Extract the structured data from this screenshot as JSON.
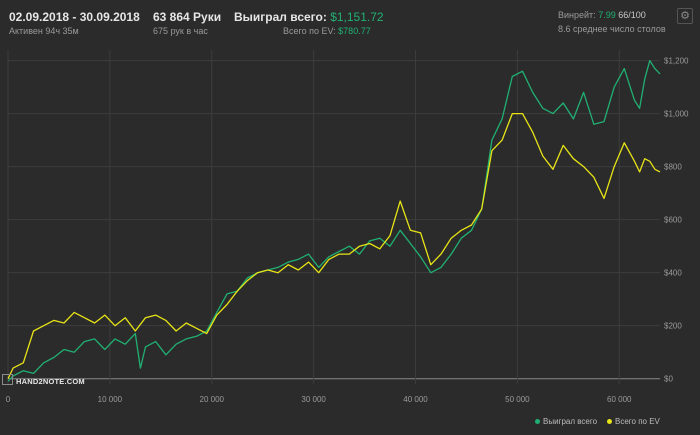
{
  "header": {
    "dates": "02.09.2018 - 30.09.2018",
    "active": "Активен 94ч 35м",
    "hands": "63 864 Руки",
    "hands_rate": "675 рук в час",
    "won_label": "Выиграл всего:",
    "won_value": "$1,151.72",
    "ev_label": "Всего по EV:",
    "ev_value": "$780.77",
    "winrate_label": "Винрейт:",
    "winrate_value": "7.99",
    "winrate_wins": "66/100",
    "avg_tables": "8.6 среднее число столов"
  },
  "colors": {
    "won": "#21b073",
    "ev": "#e8e416",
    "background": "#2b2b2b",
    "grid": "#3c3c3c"
  },
  "icons": {
    "settings": "gear-icon",
    "logo": "hand2note-logo"
  },
  "logo_text": "HAND2NOTE.COM",
  "legend": {
    "won": "Выиграл всего",
    "ev": "Всего по EV"
  },
  "chart_data": {
    "type": "line",
    "xlim": [
      0,
      64000
    ],
    "ylim": [
      -20,
      1240
    ],
    "x_ticks": [
      {
        "v": 0,
        "label": "0"
      },
      {
        "v": 10000,
        "label": "10 000"
      },
      {
        "v": 20000,
        "label": "20 000"
      },
      {
        "v": 30000,
        "label": "30 000"
      },
      {
        "v": 40000,
        "label": "40 000"
      },
      {
        "v": 50000,
        "label": "50 000"
      },
      {
        "v": 60000,
        "label": "60 000"
      }
    ],
    "y_ticks": [
      {
        "v": 0,
        "label": "$0"
      },
      {
        "v": 200,
        "label": "$200"
      },
      {
        "v": 400,
        "label": "$400"
      },
      {
        "v": 600,
        "label": "$600"
      },
      {
        "v": 800,
        "label": "$800"
      },
      {
        "v": 1000,
        "label": "$1,000"
      },
      {
        "v": 1200,
        "label": "$1,200"
      }
    ],
    "grid": true,
    "legend_position": "bottom-right",
    "series": [
      {
        "name": "Выиграл всего",
        "key": "won",
        "points": [
          [
            0,
            -10
          ],
          [
            500,
            10
          ],
          [
            1500,
            30
          ],
          [
            2500,
            20
          ],
          [
            3500,
            60
          ],
          [
            4500,
            80
          ],
          [
            5500,
            110
          ],
          [
            6500,
            100
          ],
          [
            7500,
            140
          ],
          [
            8500,
            150
          ],
          [
            9500,
            110
          ],
          [
            10500,
            150
          ],
          [
            11500,
            130
          ],
          [
            12500,
            170
          ],
          [
            13000,
            40
          ],
          [
            13500,
            120
          ],
          [
            14500,
            140
          ],
          [
            15500,
            90
          ],
          [
            16500,
            130
          ],
          [
            17500,
            150
          ],
          [
            18500,
            160
          ],
          [
            19500,
            180
          ],
          [
            20500,
            250
          ],
          [
            21500,
            320
          ],
          [
            22500,
            330
          ],
          [
            23500,
            380
          ],
          [
            24500,
            400
          ],
          [
            25500,
            410
          ],
          [
            26500,
            420
          ],
          [
            27500,
            440
          ],
          [
            28500,
            450
          ],
          [
            29500,
            470
          ],
          [
            30500,
            420
          ],
          [
            31500,
            460
          ],
          [
            32500,
            480
          ],
          [
            33500,
            500
          ],
          [
            34500,
            470
          ],
          [
            35500,
            520
          ],
          [
            36500,
            530
          ],
          [
            37500,
            500
          ],
          [
            38500,
            560
          ],
          [
            39500,
            510
          ],
          [
            40500,
            460
          ],
          [
            41500,
            400
          ],
          [
            42500,
            420
          ],
          [
            43500,
            470
          ],
          [
            44500,
            530
          ],
          [
            45500,
            560
          ],
          [
            46500,
            640
          ],
          [
            47500,
            900
          ],
          [
            48500,
            980
          ],
          [
            49500,
            1140
          ],
          [
            50500,
            1160
          ],
          [
            51500,
            1080
          ],
          [
            52500,
            1020
          ],
          [
            53500,
            1000
          ],
          [
            54500,
            1040
          ],
          [
            55500,
            980
          ],
          [
            56500,
            1080
          ],
          [
            57500,
            960
          ],
          [
            58500,
            970
          ],
          [
            59500,
            1100
          ],
          [
            60500,
            1170
          ],
          [
            61500,
            1050
          ],
          [
            62000,
            1020
          ],
          [
            62500,
            1130
          ],
          [
            63000,
            1200
          ],
          [
            63500,
            1170
          ],
          [
            64000,
            1150
          ]
        ]
      },
      {
        "name": "Всего по EV",
        "key": "ev",
        "points": [
          [
            0,
            0
          ],
          [
            500,
            40
          ],
          [
            1500,
            60
          ],
          [
            2500,
            180
          ],
          [
            3500,
            200
          ],
          [
            4500,
            220
          ],
          [
            5500,
            210
          ],
          [
            6500,
            250
          ],
          [
            7500,
            230
          ],
          [
            8500,
            210
          ],
          [
            9500,
            240
          ],
          [
            10500,
            200
          ],
          [
            11500,
            230
          ],
          [
            12500,
            180
          ],
          [
            13500,
            230
          ],
          [
            14500,
            240
          ],
          [
            15500,
            220
          ],
          [
            16500,
            180
          ],
          [
            17500,
            210
          ],
          [
            18500,
            190
          ],
          [
            19500,
            170
          ],
          [
            20500,
            240
          ],
          [
            21500,
            280
          ],
          [
            22500,
            330
          ],
          [
            23500,
            370
          ],
          [
            24500,
            400
          ],
          [
            25500,
            410
          ],
          [
            26500,
            400
          ],
          [
            27500,
            430
          ],
          [
            28500,
            410
          ],
          [
            29500,
            440
          ],
          [
            30500,
            400
          ],
          [
            31500,
            450
          ],
          [
            32500,
            470
          ],
          [
            33500,
            470
          ],
          [
            34500,
            500
          ],
          [
            35500,
            510
          ],
          [
            36500,
            490
          ],
          [
            37500,
            540
          ],
          [
            38500,
            670
          ],
          [
            39500,
            560
          ],
          [
            40500,
            550
          ],
          [
            41500,
            430
          ],
          [
            42500,
            470
          ],
          [
            43500,
            530
          ],
          [
            44500,
            560
          ],
          [
            45500,
            580
          ],
          [
            46500,
            640
          ],
          [
            47500,
            860
          ],
          [
            48500,
            900
          ],
          [
            49500,
            1000
          ],
          [
            50500,
            1000
          ],
          [
            51500,
            930
          ],
          [
            52500,
            840
          ],
          [
            53500,
            790
          ],
          [
            54500,
            880
          ],
          [
            55500,
            830
          ],
          [
            56500,
            800
          ],
          [
            57500,
            760
          ],
          [
            58500,
            680
          ],
          [
            59500,
            800
          ],
          [
            60500,
            890
          ],
          [
            61500,
            820
          ],
          [
            62000,
            780
          ],
          [
            62500,
            830
          ],
          [
            63000,
            820
          ],
          [
            63500,
            790
          ],
          [
            64000,
            780
          ]
        ]
      }
    ]
  }
}
